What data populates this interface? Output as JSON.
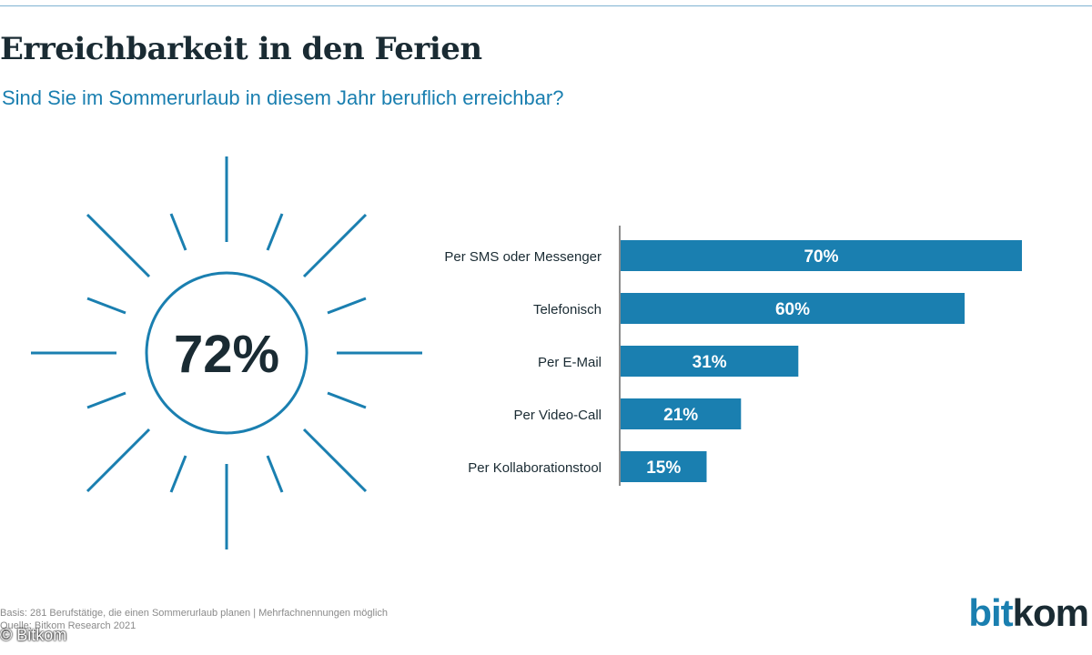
{
  "title": "Erreichbarkeit in den Ferien",
  "subtitle": "Sind Sie im Sommerurlaub in diesem Jahr beruflich erreichbar?",
  "headline_value": "72%",
  "colors": {
    "accent": "#1a7fb0",
    "text": "#1a2b33"
  },
  "chart_data": {
    "type": "bar",
    "orientation": "horizontal",
    "categories": [
      "Per SMS oder Messenger",
      "Telefonisch",
      "Per E-Mail",
      "Per Video-Call",
      "Per Kollaborationstool"
    ],
    "values": [
      70,
      60,
      31,
      21,
      15
    ],
    "value_labels": [
      "70%",
      "60%",
      "31%",
      "21%",
      "15%"
    ],
    "unit": "%",
    "xlim": [
      0,
      70
    ],
    "grid": false
  },
  "footnote": {
    "basis": "Basis: 281 Berufstätige, die einen Sommerurlaub planen | Mehrfachnennungen möglich",
    "source": "Quelle: Bitkom Research 2021"
  },
  "credit": "© Bitkom",
  "logo": {
    "part1": "bit",
    "part2": "kom"
  }
}
